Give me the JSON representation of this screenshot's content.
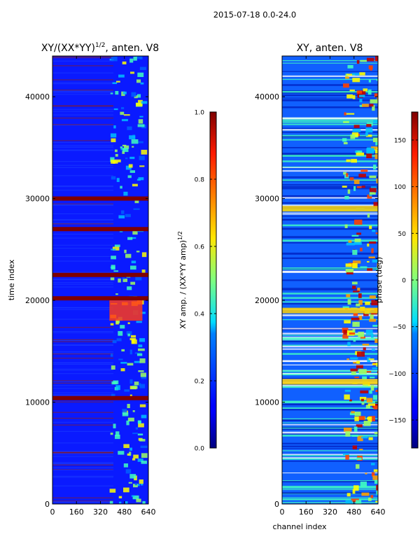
{
  "figure_title": "2015-07-18 0.0-24.0",
  "chart_data": [
    {
      "type": "heatmap",
      "title_main": "XY/(XX*YY)",
      "title_sup": "1/2",
      "title_tail": ", anten. V8",
      "xlabel": "",
      "ylabel": "time index",
      "xlim": [
        0,
        640
      ],
      "ylim": [
        0,
        44000
      ],
      "x_ticks": [
        0,
        160,
        320,
        480,
        640
      ],
      "x_tick_labels": [
        "0",
        "160",
        "320",
        "480",
        "640"
      ],
      "y_ticks": [
        0,
        10000,
        20000,
        30000,
        40000
      ],
      "y_tick_labels": [
        "0",
        "10000",
        "20000",
        "30000",
        "40000"
      ],
      "colormap": "jet",
      "colorbar": {
        "label_main": "XY amp. / (XX*YY amp)",
        "label_sup": "1/2",
        "range": [
          0.0,
          1.0
        ],
        "ticks": [
          0.0,
          0.2,
          0.4,
          0.6,
          0.8,
          1.0
        ],
        "tick_labels": [
          "0.0",
          "0.2",
          "0.4",
          "0.6",
          "0.8",
          "1.0"
        ]
      },
      "saturated_rows_time_index": [
        30000,
        20200,
        10400,
        27000,
        22500
      ],
      "active_channel_range": [
        380,
        600
      ]
    },
    {
      "type": "heatmap",
      "title_main": "XY, anten. V8",
      "xlabel": "channel index",
      "ylabel": "",
      "xlim": [
        0,
        640
      ],
      "ylim": [
        0,
        44000
      ],
      "x_ticks": [
        0,
        160,
        320,
        480,
        640
      ],
      "x_tick_labels": [
        "0",
        "160",
        "320",
        "480",
        "640"
      ],
      "y_ticks": [
        0,
        10000,
        20000,
        30000,
        40000
      ],
      "y_tick_labels": [
        "0",
        "10000",
        "20000",
        "30000",
        "40000"
      ],
      "colormap": "jet",
      "colorbar": {
        "label_main": "phase (deg)",
        "range": [
          -180,
          180
        ],
        "ticks": [
          -150,
          -100,
          -50,
          0,
          50,
          100,
          150
        ],
        "tick_labels": [
          "−150",
          "−100",
          "−50",
          "0",
          "50",
          "100",
          "150"
        ]
      },
      "bright_bands_time_index": [
        29000,
        19000,
        12000
      ],
      "active_channel_range": [
        400,
        640
      ]
    }
  ]
}
